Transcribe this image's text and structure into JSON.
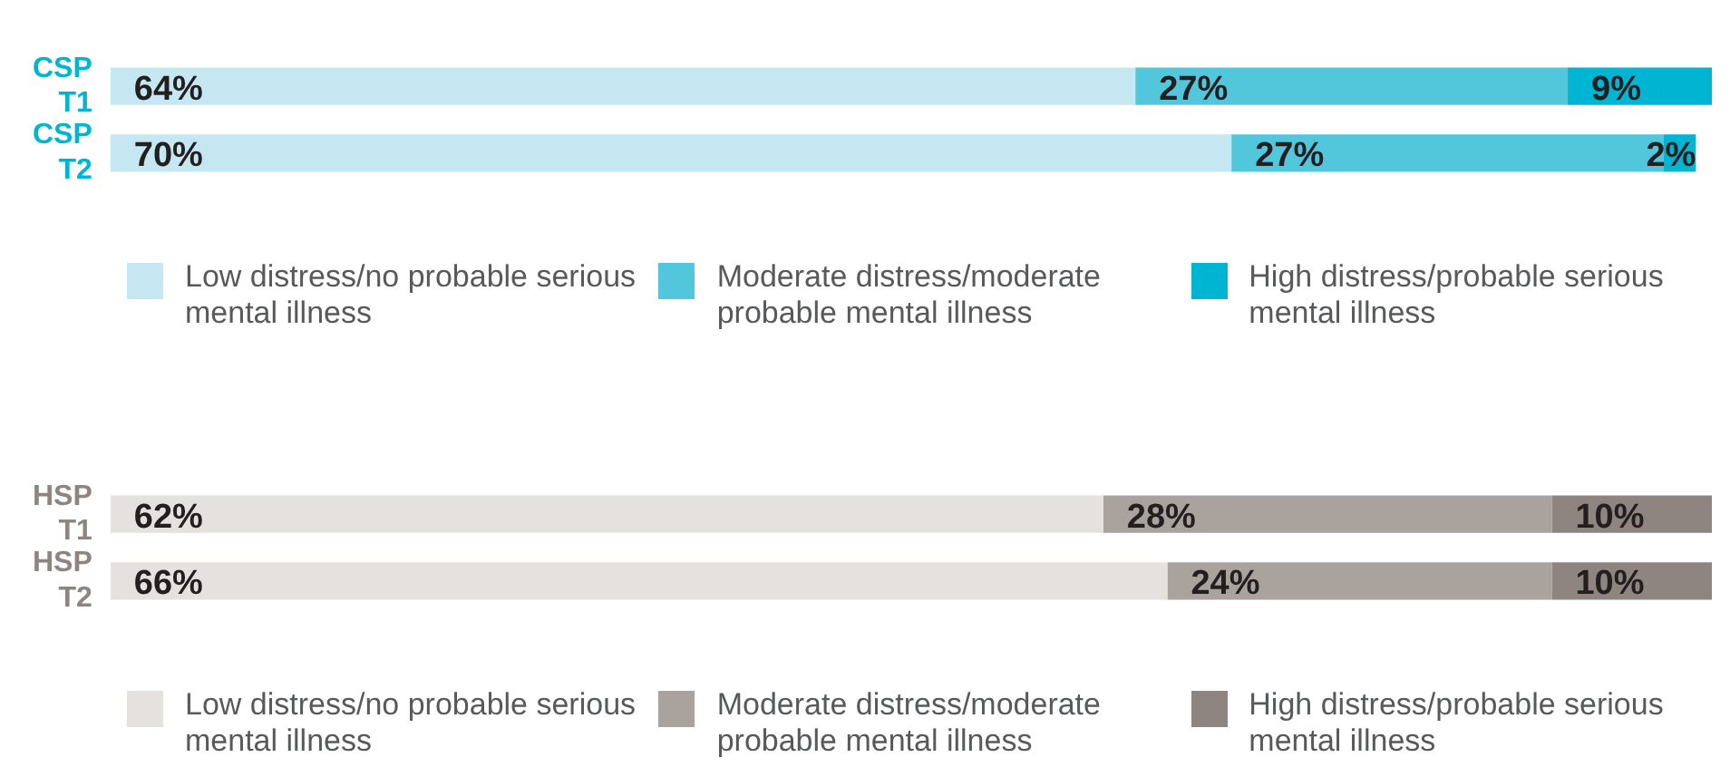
{
  "chart_data": [
    {
      "type": "bar",
      "orientation": "horizontal",
      "stacked": true,
      "categories": [
        "CSP T1",
        "CSP T2"
      ],
      "xlim": [
        0,
        100
      ],
      "tick_labels": "y",
      "data_labels": true,
      "legend": "bottom",
      "grid": false,
      "series": [
        {
          "name": "Low distress/no probable serious mental illness",
          "color": "#c5e7f1",
          "values": [
            64,
            70
          ],
          "value_labels": [
            "64%",
            "70%"
          ]
        },
        {
          "name": "Moderate distress/moderate probable mental illness",
          "color": "#52c7dc",
          "values": [
            27,
            27
          ],
          "value_labels": [
            "27%",
            "27%"
          ]
        },
        {
          "name": "High distress/probable serious mental illness",
          "color": "#00b5d1",
          "values": [
            9,
            2
          ],
          "value_labels": [
            "9%",
            "2%"
          ]
        }
      ]
    },
    {
      "type": "bar",
      "orientation": "horizontal",
      "stacked": true,
      "categories": [
        "HSP T1",
        "HSP T2"
      ],
      "xlim": [
        0,
        100
      ],
      "tick_labels": "y",
      "data_labels": true,
      "legend": "bottom",
      "grid": false,
      "series": [
        {
          "name": "Low distress/no probable serious mental illness",
          "color": "#e5e1de",
          "values": [
            62,
            66
          ],
          "value_labels": [
            "62%",
            "66%"
          ]
        },
        {
          "name": "Moderate distress/moderate probable mental illness",
          "color": "#aaa29c",
          "values": [
            28,
            24
          ],
          "value_labels": [
            "28%",
            "24%"
          ]
        },
        {
          "name": "High distress/probable serious mental illness",
          "color": "#8e8580",
          "values": [
            10,
            10
          ],
          "value_labels": [
            "10%",
            "10%"
          ]
        }
      ]
    }
  ]
}
